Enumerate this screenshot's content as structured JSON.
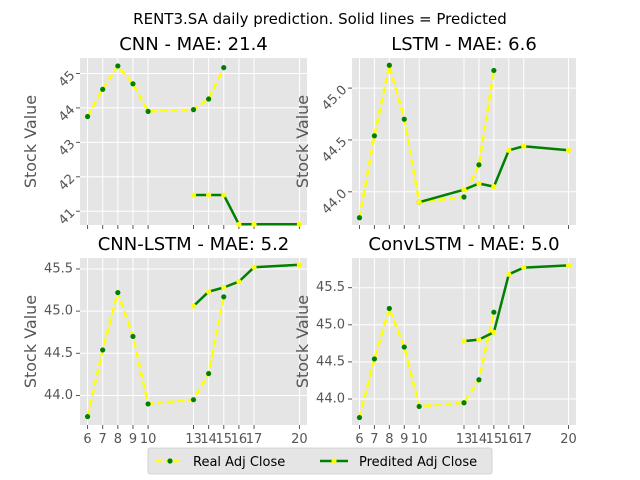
{
  "figure": {
    "suptitle": "RENT3.SA daily prediction. Solid lines = Predicted",
    "legend": [
      {
        "label": "Real Adj Close",
        "style": "dashed-yellow-dots"
      },
      {
        "label": "Predited Adj Close",
        "style": "solid-green-markers"
      }
    ],
    "legend_position": "bottom-center",
    "colors": {
      "real_line": "#ffff00",
      "real_marker": "#008000",
      "pred_line": "#008000",
      "pred_marker": "#ffff00",
      "panel_bg": "#e5e5e5",
      "grid": "#ffffff"
    }
  },
  "chart_data": [
    {
      "type": "line",
      "title": "CNN - MAE: 21.4",
      "xlabel": "",
      "ylabel": "Stock Value",
      "xlim": [
        5.5,
        20.5
      ],
      "ylim": [
        40.6,
        45.45
      ],
      "x_ticks": [
        6,
        7,
        8,
        9,
        10,
        13,
        14,
        15,
        16,
        17,
        20
      ],
      "x_tick_labels_visible": false,
      "y_ticks": [
        41,
        42,
        43,
        44,
        45
      ],
      "y_tick_labels": [
        "41",
        "42",
        "43",
        "44",
        "45"
      ],
      "y_tick_rotation": 45,
      "grid": true,
      "series": [
        {
          "name": "Real Adj Close",
          "x": [
            6,
            7,
            8,
            9,
            10,
            13,
            14,
            15
          ],
          "y": [
            43.75,
            44.54,
            45.22,
            44.7,
            43.9,
            43.95,
            44.26,
            45.17
          ]
        },
        {
          "name": "Predited Adj Close",
          "x": [
            13,
            14,
            15,
            16,
            17,
            20
          ],
          "y": [
            41.47,
            41.47,
            41.47,
            40.62,
            40.62,
            40.62
          ]
        }
      ]
    },
    {
      "type": "line",
      "title": "LSTM - MAE: 6.6",
      "xlabel": "",
      "ylabel": "Stock Value",
      "xlim": [
        5.5,
        20.5
      ],
      "ylim": [
        43.68,
        45.29
      ],
      "x_ticks": [
        6,
        7,
        8,
        9,
        10,
        13,
        14,
        15,
        16,
        17,
        20
      ],
      "x_tick_labels_visible": false,
      "y_ticks": [
        44.0,
        44.5,
        45.0
      ],
      "y_tick_labels": [
        "44.0",
        "44.5",
        "45.0"
      ],
      "y_tick_rotation": 45,
      "grid": true,
      "series": [
        {
          "name": "Real Adj Close",
          "x": [
            6,
            7,
            8,
            9,
            10,
            13,
            14,
            15
          ],
          "y": [
            43.75,
            44.54,
            45.22,
            44.7,
            43.9,
            43.95,
            44.26,
            45.17
          ]
        },
        {
          "name": "Predited Adj Close",
          "x": [
            10,
            13,
            14,
            15,
            16,
            17,
            20
          ],
          "y": [
            43.9,
            44.02,
            44.08,
            44.05,
            44.4,
            44.44,
            44.4
          ]
        }
      ]
    },
    {
      "type": "line",
      "title": "CNN-LSTM - MAE: 5.2",
      "xlabel": "",
      "ylabel": "Stock Value",
      "xlim": [
        5.5,
        20.5
      ],
      "ylim": [
        43.65,
        45.63
      ],
      "x_ticks": [
        6,
        7,
        8,
        9,
        10,
        13,
        14,
        15,
        16,
        17,
        20
      ],
      "x_tick_labels": [
        "6",
        "7",
        "8",
        "9",
        "10",
        "13",
        "14",
        "15",
        "16",
        "17",
        "20"
      ],
      "x_tick_labels_visible": true,
      "y_ticks": [
        44.0,
        44.5,
        45.0,
        45.5
      ],
      "y_tick_labels": [
        "44.0",
        "44.5",
        "45.0",
        "45.5"
      ],
      "y_tick_rotation": 0,
      "grid": true,
      "series": [
        {
          "name": "Real Adj Close",
          "x": [
            6,
            7,
            8,
            9,
            10,
            13,
            14,
            15
          ],
          "y": [
            43.75,
            44.54,
            45.22,
            44.7,
            43.9,
            43.95,
            44.26,
            45.17
          ]
        },
        {
          "name": "Predited Adj Close",
          "x": [
            13,
            14,
            15,
            16,
            17,
            20
          ],
          "y": [
            45.06,
            45.23,
            45.28,
            45.35,
            45.52,
            45.55
          ]
        }
      ]
    },
    {
      "type": "line",
      "title": "ConvLSTM - MAE: 5.0",
      "xlabel": "",
      "ylabel": "Stock Value",
      "xlim": [
        5.5,
        20.5
      ],
      "ylim": [
        43.65,
        45.9
      ],
      "x_ticks": [
        6,
        7,
        8,
        9,
        10,
        13,
        14,
        15,
        16,
        17,
        20
      ],
      "x_tick_labels": [
        "6",
        "7",
        "8",
        "9",
        "10",
        "13",
        "14",
        "15",
        "16",
        "17",
        "20"
      ],
      "x_tick_labels_visible": true,
      "y_ticks": [
        44.0,
        44.5,
        45.0,
        45.5
      ],
      "y_tick_labels": [
        "44.0",
        "44.5",
        "45.0",
        "45.5"
      ],
      "y_tick_rotation": 0,
      "grid": true,
      "series": [
        {
          "name": "Real Adj Close",
          "x": [
            6,
            7,
            8,
            9,
            10,
            13,
            14,
            15
          ],
          "y": [
            43.75,
            44.54,
            45.22,
            44.7,
            43.9,
            43.95,
            44.26,
            45.17
          ]
        },
        {
          "name": "Predited Adj Close",
          "x": [
            13,
            14,
            15,
            16,
            17,
            20
          ],
          "y": [
            44.78,
            44.8,
            44.9,
            45.68,
            45.77,
            45.8
          ]
        }
      ]
    }
  ]
}
